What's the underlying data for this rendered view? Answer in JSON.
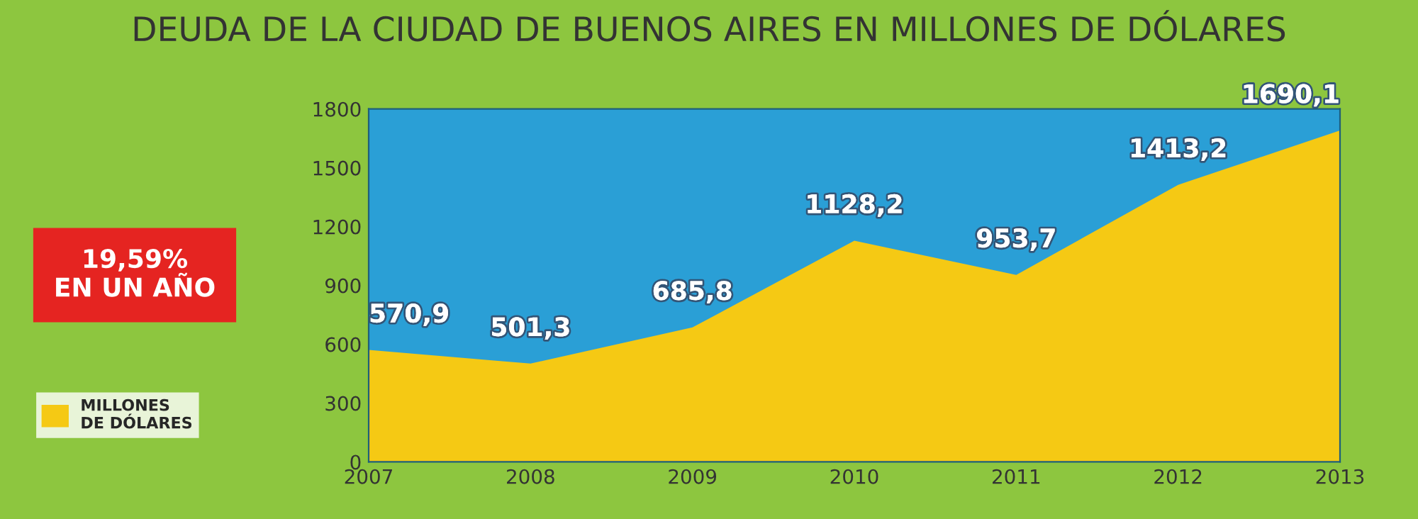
{
  "chart_data": {
    "type": "area",
    "title": "DEUDA DE LA CIUDAD DE BUENOS AIRES EN MILLONES DE DÓLARES",
    "categories": [
      "2007",
      "2008",
      "2009",
      "2010",
      "2011",
      "2012",
      "2013"
    ],
    "series": [
      {
        "name": "MILLONES\nDE DÓLARES",
        "color": "#f5c914",
        "values": [
          570.9,
          501.3,
          685.8,
          1128.2,
          953.7,
          1413.2,
          1690.1
        ],
        "value_labels": [
          "570,9",
          "501,3",
          "685,8",
          "1128,2",
          "953,7",
          "1413,2",
          "1690,1"
        ]
      }
    ],
    "ylim": [
      0,
      1800
    ],
    "yticks": [
      0,
      300,
      600,
      900,
      1200,
      1500,
      1800
    ],
    "annotations": [
      "19,59%\nEN UN AÑO"
    ],
    "bands": [
      {
        "axis": "y",
        "from": 0,
        "to": 1800,
        "color": "#2a9fd6"
      }
    ],
    "legend": "left",
    "grid": false
  }
}
